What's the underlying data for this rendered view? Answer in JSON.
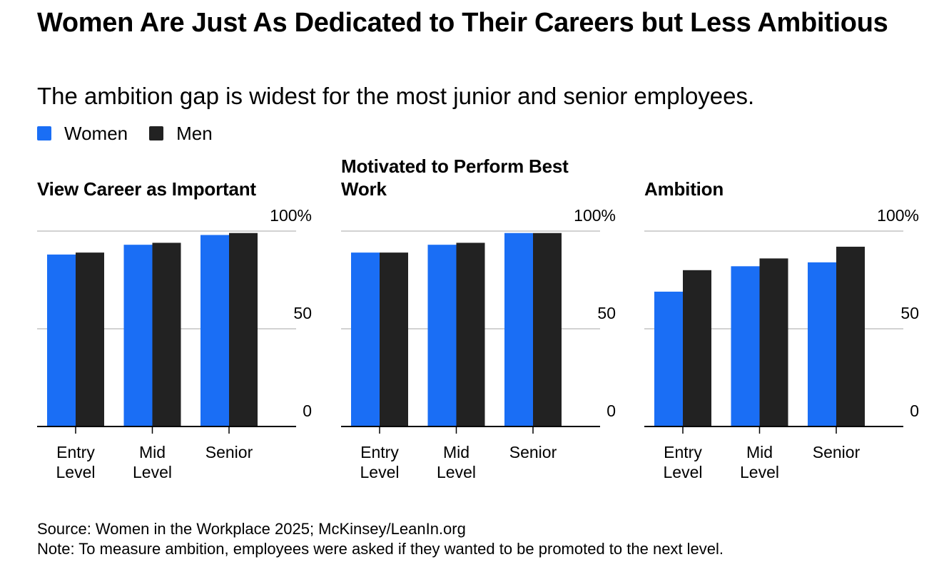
{
  "title": "Women Are Just As Dedicated to Their Careers but Less Ambitious",
  "subtitle": "The ambition gap is widest for the most junior and senior employees.",
  "legend": [
    {
      "label": "Women",
      "color": "#1a6ef5"
    },
    {
      "label": "Men",
      "color": "#222222"
    }
  ],
  "footer": {
    "source": "Source: Women in the Workplace 2025; McKinsey/LeanIn.org",
    "note": "Note: To measure ambition, employees were asked if they wanted to be promoted to the next level."
  },
  "chart_data": [
    {
      "type": "bar",
      "title": "View Career as Important",
      "categories": [
        "Entry\nLevel",
        "Mid\nLevel",
        "Senior"
      ],
      "series": [
        {
          "name": "Women",
          "values": [
            88,
            93,
            98
          ]
        },
        {
          "name": "Men",
          "values": [
            89,
            94,
            99
          ]
        }
      ],
      "yticks": [
        {
          "value": 0,
          "label": "0"
        },
        {
          "value": 50,
          "label": "50"
        },
        {
          "value": 100,
          "label": "100%"
        }
      ],
      "ylim": [
        0,
        100
      ]
    },
    {
      "type": "bar",
      "title": "Motivated to Perform Best Work",
      "categories": [
        "Entry\nLevel",
        "Mid\nLevel",
        "Senior"
      ],
      "series": [
        {
          "name": "Women",
          "values": [
            89,
            93,
            99
          ]
        },
        {
          "name": "Men",
          "values": [
            89,
            94,
            99
          ]
        }
      ],
      "yticks": [
        {
          "value": 0,
          "label": "0"
        },
        {
          "value": 50,
          "label": "50"
        },
        {
          "value": 100,
          "label": "100%"
        }
      ],
      "ylim": [
        0,
        100
      ]
    },
    {
      "type": "bar",
      "title": "Ambition",
      "categories": [
        "Entry\nLevel",
        "Mid\nLevel",
        "Senior"
      ],
      "series": [
        {
          "name": "Women",
          "values": [
            69,
            82,
            84
          ]
        },
        {
          "name": "Men",
          "values": [
            80,
            86,
            92
          ]
        }
      ],
      "yticks": [
        {
          "value": 0,
          "label": "0"
        },
        {
          "value": 50,
          "label": "50"
        },
        {
          "value": 100,
          "label": "100%"
        }
      ],
      "ylim": [
        0,
        100
      ]
    }
  ]
}
